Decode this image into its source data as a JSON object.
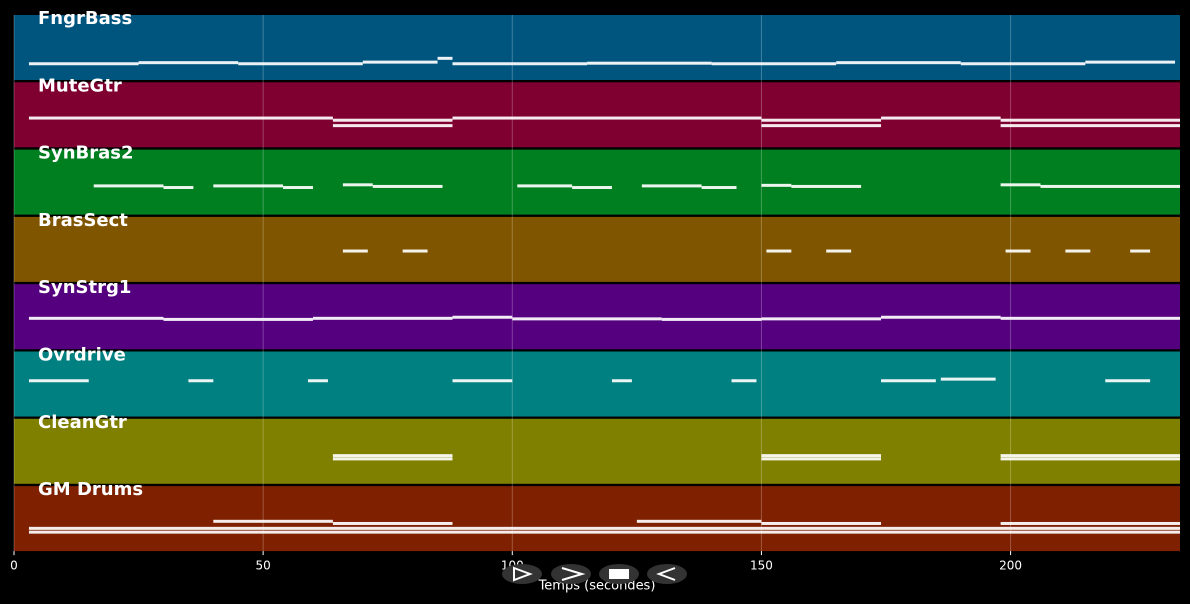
{
  "chart_data": {
    "type": "pianoroll",
    "x_label": "Temps (secondes)",
    "xlim": [
      0,
      234
    ],
    "xticks": [
      0,
      50,
      100,
      150,
      200
    ],
    "ylim": [
      0,
      12
    ],
    "grid": true,
    "series": [
      {
        "name": "FngrBass",
        "color": "#00557f",
        "notes": [
          [
            3,
            25,
            3
          ],
          [
            25,
            45,
            3.2
          ],
          [
            45,
            70,
            3
          ],
          [
            70,
            85,
            3.3
          ],
          [
            85,
            88,
            4
          ],
          [
            88,
            115,
            3
          ],
          [
            115,
            140,
            3.1
          ],
          [
            140,
            165,
            3
          ],
          [
            165,
            190,
            3.2
          ],
          [
            190,
            215,
            3
          ],
          [
            215,
            233,
            3.3
          ]
        ]
      },
      {
        "name": "MuteGtr",
        "color": "#7f0030",
        "notes": [
          [
            3,
            64,
            5.4
          ],
          [
            64,
            88,
            4
          ],
          [
            64,
            88,
            5
          ],
          [
            88,
            150,
            5.4
          ],
          [
            150,
            174,
            4
          ],
          [
            150,
            174,
            5
          ],
          [
            174,
            198,
            5.4
          ],
          [
            198,
            234,
            4
          ],
          [
            198,
            234,
            5
          ]
        ]
      },
      {
        "name": "SynBras2",
        "color": "#007f20",
        "notes": [
          [
            16,
            30,
            5.3
          ],
          [
            30,
            36,
            5
          ],
          [
            40,
            54,
            5.3
          ],
          [
            54,
            60,
            5
          ],
          [
            66,
            72,
            5.5
          ],
          [
            72,
            86,
            5.2
          ],
          [
            101,
            112,
            5.3
          ],
          [
            112,
            120,
            5
          ],
          [
            126,
            138,
            5.3
          ],
          [
            138,
            145,
            5
          ],
          [
            150,
            156,
            5.4
          ],
          [
            156,
            170,
            5.2
          ],
          [
            198,
            206,
            5.5
          ],
          [
            206,
            234,
            5.2
          ]
        ]
      },
      {
        "name": "BrasSect",
        "color": "#7f5500",
        "notes": [
          [
            66,
            71,
            5.7
          ],
          [
            78,
            83,
            5.7
          ],
          [
            151,
            156,
            5.7
          ],
          [
            163,
            168,
            5.7
          ],
          [
            199,
            204,
            5.7
          ],
          [
            211,
            216,
            5.7
          ],
          [
            224,
            228,
            5.7
          ]
        ]
      },
      {
        "name": "SynStrg1",
        "color": "#55007f",
        "notes": [
          [
            3,
            30,
            5.7
          ],
          [
            30,
            60,
            5.5
          ],
          [
            60,
            88,
            5.7
          ],
          [
            88,
            100,
            5.9
          ],
          [
            100,
            130,
            5.6
          ],
          [
            130,
            150,
            5.5
          ],
          [
            150,
            174,
            5.6
          ],
          [
            174,
            198,
            5.9
          ],
          [
            198,
            234,
            5.7
          ]
        ]
      },
      {
        "name": "Ovrdrive",
        "color": "#008080",
        "notes": [
          [
            3,
            15,
            6.6
          ],
          [
            35,
            40,
            6.6
          ],
          [
            59,
            63,
            6.6
          ],
          [
            88,
            100,
            6.6
          ],
          [
            120,
            124,
            6.6
          ],
          [
            144,
            149,
            6.6
          ],
          [
            174,
            185,
            6.6
          ],
          [
            186,
            197,
            6.9
          ],
          [
            219,
            228,
            6.6
          ]
        ]
      },
      {
        "name": "CleanGtr",
        "color": "#808000",
        "notes": [
          [
            64,
            88,
            5.2
          ],
          [
            64,
            88,
            4.6
          ],
          [
            150,
            174,
            5.2
          ],
          [
            150,
            174,
            4.6
          ],
          [
            198,
            234,
            5.2
          ],
          [
            198,
            234,
            4.6
          ]
        ]
      },
      {
        "name": "GM Drums",
        "color": "#7f2000",
        "notes": [
          [
            3,
            234,
            3.5
          ],
          [
            3,
            234,
            4.2
          ],
          [
            40,
            64,
            5.5
          ],
          [
            64,
            88,
            5.1
          ],
          [
            125,
            150,
            5.5
          ],
          [
            150,
            174,
            5.1
          ],
          [
            198,
            234,
            5.1
          ]
        ]
      }
    ]
  }
}
